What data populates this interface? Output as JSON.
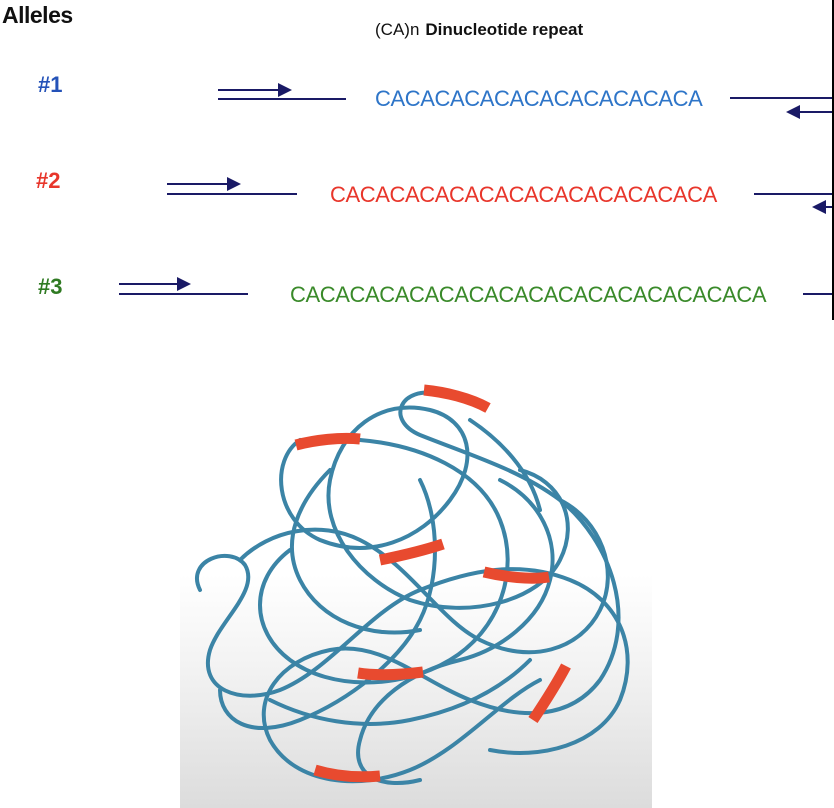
{
  "header": {
    "alleles_label": "Alleles",
    "repeat_prefix": "(CA)n",
    "repeat_label": "Dinucleotide repeat"
  },
  "alleles": [
    {
      "id": "#1",
      "sequence": "CACACACACACACACACACACA",
      "color": "#2e75c8"
    },
    {
      "id": "#2",
      "sequence": "CACACACACACACACACACACACACA",
      "color": "#e8362b"
    },
    {
      "id": "#3",
      "sequence": "CACACACACACACACACACACACACACACACA",
      "color": "#3a8a2a"
    }
  ],
  "colors": {
    "primer_line": "#1a1a66",
    "dna_strand": "#3b84a6",
    "repeat_marker": "#e84a2f"
  }
}
